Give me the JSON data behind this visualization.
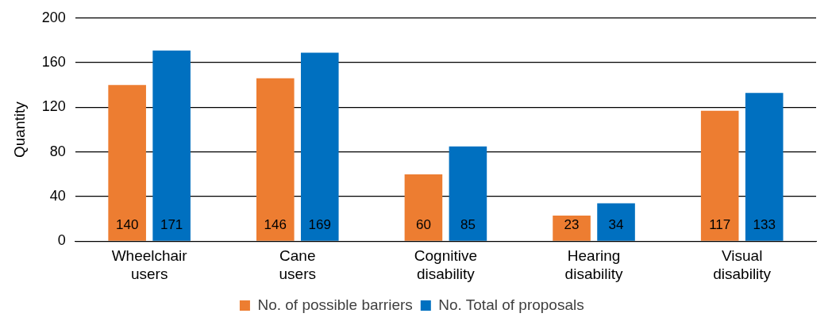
{
  "chart_data": {
    "type": "bar",
    "ylabel": "Quantity",
    "categories": [
      "Wheelchair users",
      "Cane users",
      "Cognitive disability",
      "Hearing disability",
      "Visual disability"
    ],
    "series": [
      {
        "name": "No. of possible barriers",
        "color": "#ed7d31",
        "values": [
          140,
          146,
          60,
          23,
          117
        ]
      },
      {
        "name": "No. Total of proposals",
        "color": "#0070c0",
        "values": [
          171,
          169,
          85,
          34,
          133
        ]
      }
    ],
    "ylim": [
      0,
      200
    ],
    "yticks": [
      0,
      40,
      80,
      120,
      160,
      200
    ],
    "grid": "y",
    "legend": "bottom",
    "data_labels": true
  }
}
